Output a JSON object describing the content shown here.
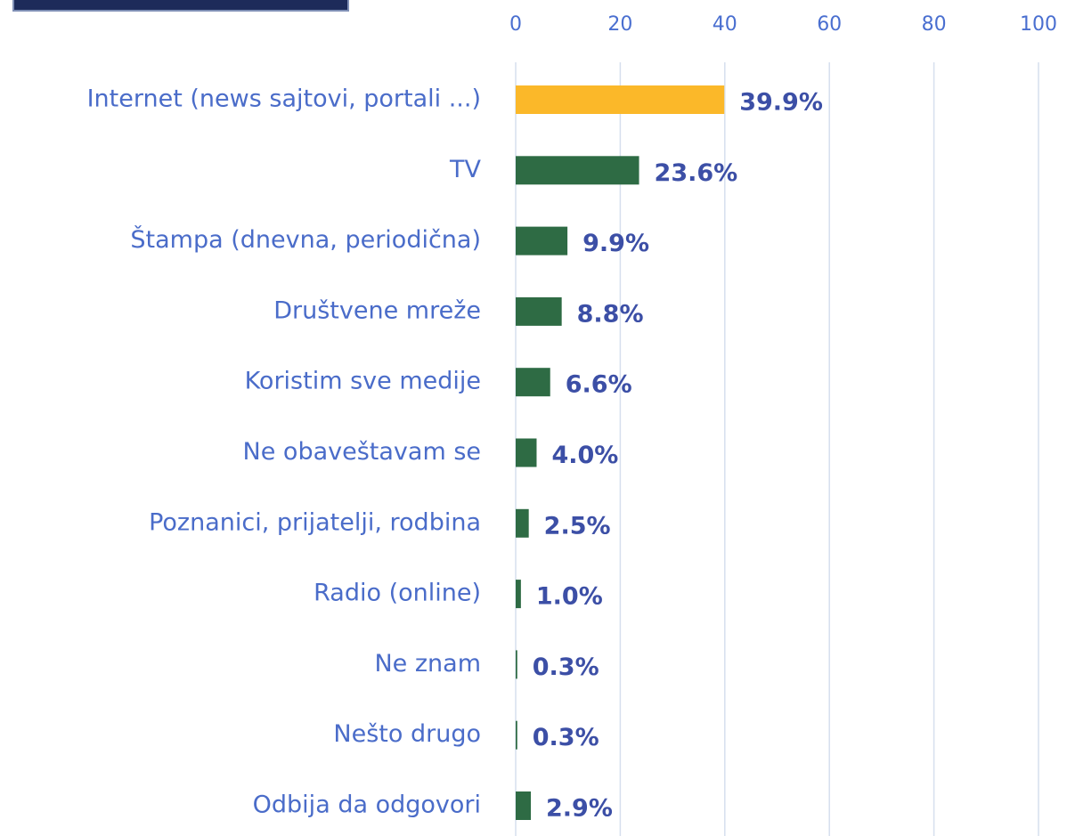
{
  "chart_data": {
    "type": "bar",
    "orientation": "horizontal",
    "categories": [
      "Internet (news sajtovi, portali ...)",
      "TV",
      "Štampa (dnevna, periodična)",
      "Društvene mreže",
      "Koristim sve medije",
      "Ne obaveštavam se",
      "Poznanici, prijatelji, rodbina",
      "Radio (online)",
      "Ne znam",
      "Nešto drugo",
      "Odbija da odgovori"
    ],
    "values": [
      39.9,
      23.6,
      9.9,
      8.8,
      6.6,
      4.0,
      2.5,
      1.0,
      0.3,
      0.3,
      2.9
    ],
    "value_labels": [
      "39.9%",
      "23.6%",
      "9.9%",
      "8.8%",
      "6.6%",
      "4.0%",
      "2.5%",
      "1.0%",
      "0.3%",
      "0.3%",
      "2.9%"
    ],
    "colors": [
      "#fbb829",
      "#2e6b44",
      "#2e6b44",
      "#2e6b44",
      "#2e6b44",
      "#2e6b44",
      "#2e6b44",
      "#2e6b44",
      "#2e6b44",
      "#2e6b44",
      "#2e6b44"
    ],
    "xlim": [
      0,
      100
    ],
    "xticks": [
      0,
      20,
      40,
      60,
      80,
      100
    ],
    "grid": true
  }
}
